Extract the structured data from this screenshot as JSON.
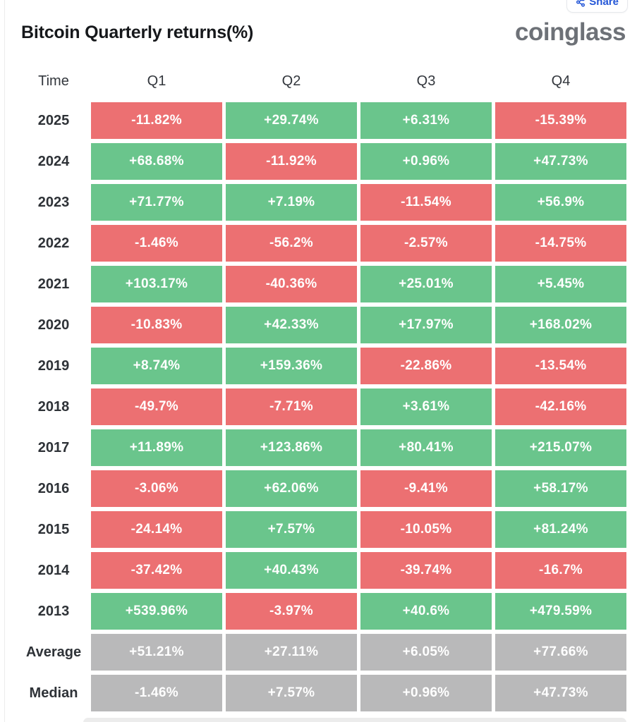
{
  "page": {
    "title": "Bitcoin Quarterly returns(%)",
    "brand": "coinglass",
    "share_label": "Share"
  },
  "colors": {
    "positive": "#6ac58c",
    "negative": "#ec7072",
    "summary": "#b9b9ba",
    "accent_blue": "#2356d7"
  },
  "table": {
    "columns": [
      "Time",
      "Q1",
      "Q2",
      "Q3",
      "Q4"
    ],
    "rows": [
      {
        "label": "2025",
        "kind": "year",
        "values": [
          "-11.82%",
          "+29.74%",
          "+6.31%",
          "-15.39%"
        ]
      },
      {
        "label": "2024",
        "kind": "year",
        "values": [
          "+68.68%",
          "-11.92%",
          "+0.96%",
          "+47.73%"
        ]
      },
      {
        "label": "2023",
        "kind": "year",
        "values": [
          "+71.77%",
          "+7.19%",
          "-11.54%",
          "+56.9%"
        ]
      },
      {
        "label": "2022",
        "kind": "year",
        "values": [
          "-1.46%",
          "-56.2%",
          "-2.57%",
          "-14.75%"
        ]
      },
      {
        "label": "2021",
        "kind": "year",
        "values": [
          "+103.17%",
          "-40.36%",
          "+25.01%",
          "+5.45%"
        ]
      },
      {
        "label": "2020",
        "kind": "year",
        "values": [
          "-10.83%",
          "+42.33%",
          "+17.97%",
          "+168.02%"
        ]
      },
      {
        "label": "2019",
        "kind": "year",
        "values": [
          "+8.74%",
          "+159.36%",
          "-22.86%",
          "-13.54%"
        ]
      },
      {
        "label": "2018",
        "kind": "year",
        "values": [
          "-49.7%",
          "-7.71%",
          "+3.61%",
          "-42.16%"
        ]
      },
      {
        "label": "2017",
        "kind": "year",
        "values": [
          "+11.89%",
          "+123.86%",
          "+80.41%",
          "+215.07%"
        ]
      },
      {
        "label": "2016",
        "kind": "year",
        "values": [
          "-3.06%",
          "+62.06%",
          "-9.41%",
          "+58.17%"
        ]
      },
      {
        "label": "2015",
        "kind": "year",
        "values": [
          "-24.14%",
          "+7.57%",
          "-10.05%",
          "+81.24%"
        ]
      },
      {
        "label": "2014",
        "kind": "year",
        "values": [
          "-37.42%",
          "+40.43%",
          "-39.74%",
          "-16.7%"
        ]
      },
      {
        "label": "2013",
        "kind": "year",
        "values": [
          "+539.96%",
          "-3.97%",
          "+40.6%",
          "+479.59%"
        ]
      },
      {
        "label": "Average",
        "kind": "summary",
        "values": [
          "+51.21%",
          "+27.11%",
          "+6.05%",
          "+77.66%"
        ]
      },
      {
        "label": "Median",
        "kind": "summary",
        "values": [
          "-1.46%",
          "+7.57%",
          "+0.96%",
          "+47.73%"
        ]
      }
    ]
  },
  "chart_data": {
    "type": "table",
    "title": "Bitcoin Quarterly returns(%)",
    "columns": [
      "Q1",
      "Q2",
      "Q3",
      "Q4"
    ],
    "row_labels": [
      "2025",
      "2024",
      "2023",
      "2022",
      "2021",
      "2020",
      "2019",
      "2018",
      "2017",
      "2016",
      "2015",
      "2014",
      "2013",
      "Average",
      "Median"
    ],
    "values_pct": [
      [
        -11.82,
        29.74,
        6.31,
        -15.39
      ],
      [
        68.68,
        -11.92,
        0.96,
        47.73
      ],
      [
        71.77,
        7.19,
        -11.54,
        56.9
      ],
      [
        -1.46,
        -56.2,
        -2.57,
        -14.75
      ],
      [
        103.17,
        -40.36,
        25.01,
        5.45
      ],
      [
        -10.83,
        42.33,
        17.97,
        168.02
      ],
      [
        8.74,
        159.36,
        -22.86,
        -13.54
      ],
      [
        -49.7,
        -7.71,
        3.61,
        -42.16
      ],
      [
        11.89,
        123.86,
        80.41,
        215.07
      ],
      [
        -3.06,
        62.06,
        -9.41,
        58.17
      ],
      [
        -24.14,
        7.57,
        -10.05,
        81.24
      ],
      [
        -37.42,
        40.43,
        -39.74,
        -16.7
      ],
      [
        539.96,
        -3.97,
        40.6,
        479.59
      ],
      [
        51.21,
        27.11,
        6.05,
        77.66
      ],
      [
        -1.46,
        7.57,
        0.96,
        47.73
      ]
    ],
    "color_rule": "positive values green, negative values red, Average/Median rows gray"
  }
}
